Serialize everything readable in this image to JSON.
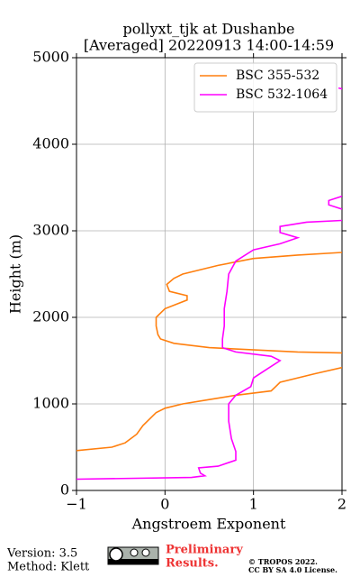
{
  "chart_data": {
    "type": "line",
    "title": "pollyxt_tjk at Dushanbe",
    "subtitle": "[Averaged] 20220913 14:00-14:59",
    "x_label": "Angstroem Exponent",
    "y_label": "Height (m)",
    "xlim": [
      -1,
      2
    ],
    "xticks": [
      {
        "value": -1,
        "label": "−1"
      },
      0,
      1,
      2
    ],
    "ylim": [
      0,
      5000
    ],
    "yticks": [
      0,
      1000,
      2000,
      3000,
      4000,
      5000
    ],
    "grid": true,
    "legend": "upper right",
    "series": [
      {
        "name": "BSC 355-532",
        "color": "#ff7f0e",
        "x": [
          -1.0,
          -0.6,
          -0.45,
          -0.32,
          -0.25,
          -0.1,
          0,
          0.2,
          0.5,
          0.8,
          1.2,
          1.25,
          1.3,
          1.7,
          2.0,
          null,
          2.0,
          1.5,
          0.5,
          0.1,
          -0.05,
          -0.08,
          -0.1,
          -0.1,
          0,
          0.25,
          0.25,
          0.05,
          0.02,
          0.1,
          0.2,
          0.6,
          1.0,
          1.5,
          2.0
        ],
        "values": [
          460,
          500,
          550,
          650,
          750,
          900,
          950,
          1000,
          1050,
          1100,
          1150,
          1200,
          1250,
          1350,
          1420,
          null,
          1590,
          1600,
          1650,
          1700,
          1750,
          1800,
          1900,
          2000,
          2100,
          2200,
          2250,
          2300,
          2380,
          2450,
          2500,
          2600,
          2680,
          2720,
          2750
        ]
      },
      {
        "name": "BSC 532-1064",
        "color": "#ff00ff",
        "x": [
          -1.0,
          0.3,
          0.45,
          0.4,
          0.38,
          0.6,
          0.8,
          0.8,
          0.75,
          0.72,
          0.72,
          0.8,
          0.97,
          1.0,
          1.15,
          1.3,
          1.2,
          0.8,
          0.65,
          0.65,
          0.67,
          0.67,
          0.7,
          0.72,
          0.8,
          1.0,
          1.3,
          1.5,
          1.3,
          1.3,
          1.6,
          2.0,
          null,
          2.0,
          1.85,
          1.85,
          2.0,
          null,
          2.0,
          1.96
        ],
        "values": [
          130,
          150,
          170,
          200,
          260,
          280,
          350,
          450,
          600,
          800,
          1000,
          1100,
          1200,
          1300,
          1400,
          1500,
          1550,
          1600,
          1650,
          1750,
          1900,
          2100,
          2300,
          2500,
          2650,
          2780,
          2850,
          2920,
          2980,
          3050,
          3100,
          3120,
          null,
          3250,
          3300,
          3350,
          3400,
          null,
          4640,
          4650
        ]
      }
    ]
  },
  "footer": {
    "version": "Version: 3.5",
    "method": "Method: Klett",
    "preliminary": [
      "Preliminary",
      "Results."
    ],
    "copyright": [
      "© TROPOS 2022.",
      "CC BY SA 4.0 License."
    ]
  }
}
